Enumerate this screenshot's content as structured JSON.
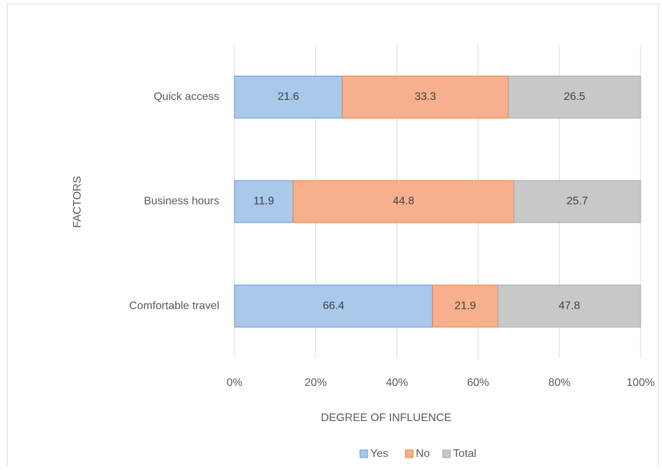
{
  "chart_data": {
    "type": "bar",
    "orientation": "horizontal",
    "stacking": "percent",
    "xlabel": "DEGREE OF INFLUENCE",
    "ylabel": "FACTORS",
    "categories": [
      "Comfortable travel",
      "Business hours",
      "Quick access"
    ],
    "series": [
      {
        "name": "Yes",
        "color": "#a9c8ea",
        "values": [
          66.4,
          11.9,
          21.6
        ]
      },
      {
        "name": "No",
        "color": "#f6b08e",
        "values": [
          21.9,
          44.8,
          33.3
        ]
      },
      {
        "name": "Total",
        "color": "#c8c8c8",
        "values": [
          47.8,
          25.7,
          26.5
        ]
      }
    ],
    "xlim": [
      0,
      100
    ],
    "xticks": [
      {
        "value": 0,
        "label": "0%"
      },
      {
        "value": 20,
        "label": "20%"
      },
      {
        "value": 40,
        "label": "40%"
      },
      {
        "value": 60,
        "label": "60%"
      },
      {
        "value": 80,
        "label": "80%"
      },
      {
        "value": 100,
        "label": "100%"
      }
    ],
    "grid": true,
    "legend": "bottom"
  }
}
